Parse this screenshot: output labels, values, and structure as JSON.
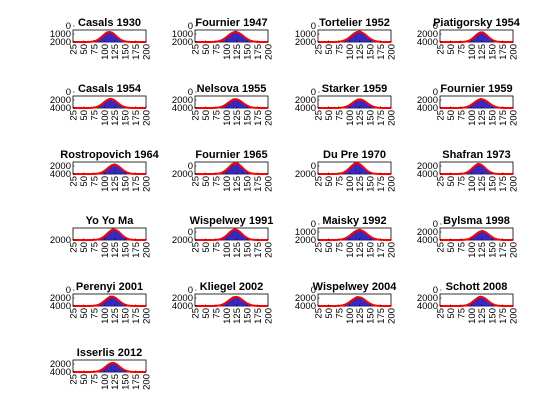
{
  "chart_data": [
    {
      "type": "bar",
      "title": "Casals 1930",
      "xticks": [
        "25",
        "50",
        "75",
        "100",
        "125",
        "150",
        "175",
        "200"
      ],
      "yticks": [
        "0",
        "1000",
        "2000"
      ],
      "ylim": [
        0,
        2400
      ],
      "xlim": [
        25,
        200
      ],
      "mean": 112,
      "sd": 16,
      "peak": 2000
    },
    {
      "type": "bar",
      "title": "Fournier 1947",
      "xticks": [
        "25",
        "50",
        "75",
        "100",
        "125",
        "150",
        "175",
        "200"
      ],
      "yticks": [
        "0",
        "1000",
        "2000"
      ],
      "ylim": [
        0,
        2400
      ],
      "xlim": [
        25,
        200
      ],
      "mean": 122,
      "sd": 18,
      "peak": 2000
    },
    {
      "type": "bar",
      "title": "Tortelier 1952",
      "xticks": [
        "25",
        "50",
        "75",
        "100",
        "125",
        "150",
        "175",
        "200"
      ],
      "yticks": [
        "0",
        "1000",
        "2000"
      ],
      "ylim": [
        0,
        2400
      ],
      "xlim": [
        25,
        200
      ],
      "mean": 123,
      "sd": 18,
      "peak": 2050
    },
    {
      "type": "bar",
      "title": "Piatigorsky 1954",
      "xticks": [
        "25",
        "50",
        "75",
        "100",
        "125",
        "150",
        "175",
        "200"
      ],
      "yticks": [
        "0",
        "2000",
        "4000"
      ],
      "ylim": [
        0,
        4500
      ],
      "xlim": [
        25,
        200
      ],
      "mean": 124,
      "sd": 15,
      "peak": 3600
    },
    {
      "type": "bar",
      "title": "Casals 1954",
      "xticks": [
        "25",
        "50",
        "75",
        "100",
        "125",
        "150",
        "175",
        "200"
      ],
      "yticks": [
        "0",
        "2000",
        "4000"
      ],
      "ylim": [
        0,
        4500
      ],
      "xlim": [
        25,
        200
      ],
      "mean": 115,
      "sd": 16,
      "peak": 3400
    },
    {
      "type": "bar",
      "title": "Nelsova 1955",
      "xticks": [
        "25",
        "50",
        "75",
        "100",
        "125",
        "150",
        "175",
        "200"
      ],
      "yticks": [
        "0",
        "2000",
        "4000"
      ],
      "ylim": [
        0,
        4500
      ],
      "xlim": [
        25,
        200
      ],
      "mean": 122,
      "sd": 17,
      "peak": 3300
    },
    {
      "type": "bar",
      "title": "Starker 1959",
      "xticks": [
        "25",
        "50",
        "75",
        "100",
        "125",
        "150",
        "175",
        "200"
      ],
      "yticks": [
        "0",
        "2000",
        "4000"
      ],
      "ylim": [
        0,
        4500
      ],
      "xlim": [
        25,
        200
      ],
      "mean": 125,
      "sd": 17,
      "peak": 3200
    },
    {
      "type": "bar",
      "title": "Fournier 1959",
      "xticks": [
        "25",
        "50",
        "75",
        "100",
        "125",
        "150",
        "175",
        "200"
      ],
      "yticks": [
        "0",
        "2000",
        "4000"
      ],
      "ylim": [
        0,
        4500
      ],
      "xlim": [
        25,
        200
      ],
      "mean": 124,
      "sd": 17,
      "peak": 3300
    },
    {
      "type": "bar",
      "title": "Rostropovich 1964",
      "xticks": [
        "25",
        "50",
        "75",
        "100",
        "125",
        "150",
        "175",
        "200"
      ],
      "yticks": [
        "2000",
        "4000"
      ],
      "ylim": [
        0,
        4500
      ],
      "xlim": [
        25,
        200
      ],
      "mean": 124,
      "sd": 16,
      "peak": 3500
    },
    {
      "type": "bar",
      "title": "Fournier 1965",
      "xticks": [
        "25",
        "50",
        "75",
        "100",
        "125",
        "150",
        "175",
        "200"
      ],
      "yticks": [
        "0",
        "2000"
      ],
      "ylim": [
        0,
        3000
      ],
      "xlim": [
        25,
        200
      ],
      "mean": 122,
      "sd": 16,
      "peak": 2700
    },
    {
      "type": "bar",
      "title": "Du Pre 1970",
      "xticks": [
        "25",
        "50",
        "75",
        "100",
        "125",
        "150",
        "175",
        "200"
      ],
      "yticks": [
        "0",
        "2000"
      ],
      "ylim": [
        0,
        3000
      ],
      "xlim": [
        25,
        200
      ],
      "mean": 118,
      "sd": 16,
      "peak": 2700
    },
    {
      "type": "bar",
      "title": "Shafran 1973",
      "xticks": [
        "25",
        "50",
        "75",
        "100",
        "125",
        "150",
        "175",
        "200"
      ],
      "yticks": [
        "2000",
        "4000"
      ],
      "ylim": [
        0,
        4500
      ],
      "xlim": [
        25,
        200
      ],
      "mean": 118,
      "sd": 15,
      "peak": 3700
    },
    {
      "type": "bar",
      "title": "Yo Yo Ma",
      "xticks": [
        "25",
        "50",
        "75",
        "100",
        "125",
        "150",
        "175",
        "200"
      ],
      "yticks": [
        "2000"
      ],
      "ylim": [
        0,
        3000
      ],
      "xlim": [
        25,
        200
      ],
      "mean": 123,
      "sd": 16,
      "peak": 2600
    },
    {
      "type": "bar",
      "title": "Wispelwey 1991",
      "xticks": [
        "25",
        "50",
        "75",
        "100",
        "125",
        "150",
        "175",
        "200"
      ],
      "yticks": [
        "0",
        "2000"
      ],
      "ylim": [
        0,
        3000
      ],
      "xlim": [
        25,
        200
      ],
      "mean": 121,
      "sd": 16,
      "peak": 2600
    },
    {
      "type": "bar",
      "title": "Maisky 1992",
      "xticks": [
        "25",
        "50",
        "75",
        "100",
        "125",
        "150",
        "175",
        "200"
      ],
      "yticks": [
        "0",
        "1000",
        "2000"
      ],
      "ylim": [
        0,
        2400
      ],
      "xlim": [
        25,
        200
      ],
      "mean": 124,
      "sd": 18,
      "peak": 2000
    },
    {
      "type": "bar",
      "title": "Bylsma 1998",
      "xticks": [
        "25",
        "50",
        "75",
        "100",
        "125",
        "150",
        "175",
        "200"
      ],
      "yticks": [
        "0",
        "2000",
        "4000"
      ],
      "ylim": [
        0,
        4500
      ],
      "xlim": [
        25,
        200
      ],
      "mean": 126,
      "sd": 16,
      "peak": 3300
    },
    {
      "type": "bar",
      "title": "Perenyi 2001",
      "xticks": [
        "25",
        "50",
        "75",
        "100",
        "125",
        "150",
        "175",
        "200"
      ],
      "yticks": [
        "0",
        "2000",
        "4000"
      ],
      "ylim": [
        0,
        4500
      ],
      "xlim": [
        25,
        200
      ],
      "mean": 118,
      "sd": 16,
      "peak": 3500
    },
    {
      "type": "bar",
      "title": "Kliegel 2002",
      "xticks": [
        "25",
        "50",
        "75",
        "100",
        "125",
        "150",
        "175",
        "200"
      ],
      "yticks": [
        "0",
        "2000",
        "4000"
      ],
      "ylim": [
        0,
        4500
      ],
      "xlim": [
        25,
        200
      ],
      "mean": 123,
      "sd": 17,
      "peak": 3400
    },
    {
      "type": "bar",
      "title": "Wispelwey 2004",
      "xticks": [
        "25",
        "50",
        "75",
        "100",
        "125",
        "150",
        "175",
        "200"
      ],
      "yticks": [
        "0",
        "2000",
        "4000"
      ],
      "ylim": [
        0,
        4500
      ],
      "xlim": [
        25,
        200
      ],
      "mean": 122,
      "sd": 17,
      "peak": 3300
    },
    {
      "type": "bar",
      "title": "Schott 2008",
      "xticks": [
        "25",
        "50",
        "75",
        "100",
        "125",
        "150",
        "175",
        "200"
      ],
      "yticks": [
        "0",
        "2000",
        "4000"
      ],
      "ylim": [
        0,
        4500
      ],
      "xlim": [
        25,
        200
      ],
      "mean": 123,
      "sd": 16,
      "peak": 3400
    },
    {
      "type": "bar",
      "title": "Isserlis 2012",
      "xticks": [
        "25",
        "50",
        "75",
        "100",
        "125",
        "150",
        "175",
        "200"
      ],
      "yticks": [
        "2000",
        "4000"
      ],
      "ylim": [
        0,
        4500
      ],
      "xlim": [
        25,
        200
      ],
      "mean": 120,
      "sd": 16,
      "peak": 3400
    }
  ],
  "colors": {
    "bars": "#3b2bd6",
    "bar_edge": "#1a0f8c",
    "fit": "#ff0000",
    "axes": "#000000",
    "background": "#ffffff"
  }
}
